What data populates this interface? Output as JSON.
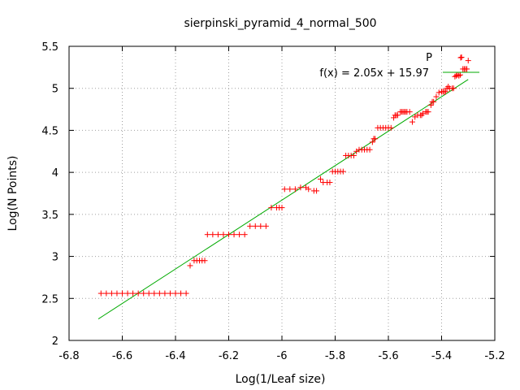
{
  "chart_data": {
    "type": "scatter",
    "title": "sierpinski_pyramid_4_normal_500",
    "xlabel": "Log(1/Leaf size)",
    "ylabel": "Log(N Points)",
    "xlim": [
      -6.8,
      -5.2
    ],
    "ylim": [
      2,
      5.5
    ],
    "x_ticks": [
      "-6.8",
      "-6.6",
      "-6.4",
      "-6.2",
      "-6",
      "-5.8",
      "-5.6",
      "-5.4",
      "-5.2"
    ],
    "y_ticks": [
      "2",
      "2.5",
      "3",
      "3.5",
      "4",
      "4.5",
      "5",
      "5.5"
    ],
    "grid": true,
    "legend_position": "top-right",
    "colors": {
      "points": "#ff0000",
      "fit": "#00aa00"
    },
    "series": [
      {
        "name": "P",
        "marker": "plus",
        "points": [
          [
            -6.68,
            2.56
          ],
          [
            -6.66,
            2.56
          ],
          [
            -6.64,
            2.56
          ],
          [
            -6.62,
            2.56
          ],
          [
            -6.6,
            2.56
          ],
          [
            -6.58,
            2.56
          ],
          [
            -6.56,
            2.56
          ],
          [
            -6.54,
            2.56
          ],
          [
            -6.52,
            2.56
          ],
          [
            -6.5,
            2.56
          ],
          [
            -6.48,
            2.56
          ],
          [
            -6.46,
            2.56
          ],
          [
            -6.44,
            2.56
          ],
          [
            -6.42,
            2.56
          ],
          [
            -6.4,
            2.56
          ],
          [
            -6.38,
            2.56
          ],
          [
            -6.36,
            2.56
          ],
          [
            -6.345,
            2.89
          ],
          [
            -6.33,
            2.95
          ],
          [
            -6.32,
            2.95
          ],
          [
            -6.31,
            2.95
          ],
          [
            -6.3,
            2.95
          ],
          [
            -6.29,
            2.95
          ],
          [
            -6.28,
            3.26
          ],
          [
            -6.26,
            3.26
          ],
          [
            -6.24,
            3.26
          ],
          [
            -6.22,
            3.26
          ],
          [
            -6.2,
            3.26
          ],
          [
            -6.18,
            3.26
          ],
          [
            -6.16,
            3.26
          ],
          [
            -6.14,
            3.26
          ],
          [
            -6.12,
            3.36
          ],
          [
            -6.1,
            3.36
          ],
          [
            -6.08,
            3.36
          ],
          [
            -6.06,
            3.36
          ],
          [
            -6.04,
            3.58
          ],
          [
            -6.02,
            3.58
          ],
          [
            -6.01,
            3.58
          ],
          [
            -6.0,
            3.58
          ],
          [
            -5.99,
            3.8
          ],
          [
            -5.97,
            3.8
          ],
          [
            -5.95,
            3.8
          ],
          [
            -5.93,
            3.82
          ],
          [
            -5.91,
            3.82
          ],
          [
            -5.9,
            3.8
          ],
          [
            -5.88,
            3.78
          ],
          [
            -5.87,
            3.78
          ],
          [
            -5.855,
            3.92
          ],
          [
            -5.845,
            3.88
          ],
          [
            -5.83,
            3.88
          ],
          [
            -5.82,
            3.88
          ],
          [
            -5.81,
            4.01
          ],
          [
            -5.8,
            4.01
          ],
          [
            -5.79,
            4.01
          ],
          [
            -5.78,
            4.01
          ],
          [
            -5.77,
            4.01
          ],
          [
            -5.76,
            4.2
          ],
          [
            -5.75,
            4.2
          ],
          [
            -5.74,
            4.2
          ],
          [
            -5.73,
            4.2
          ],
          [
            -5.72,
            4.25
          ],
          [
            -5.71,
            4.27
          ],
          [
            -5.7,
            4.27
          ],
          [
            -5.69,
            4.27
          ],
          [
            -5.68,
            4.27
          ],
          [
            -5.67,
            4.27
          ],
          [
            -5.66,
            4.36
          ],
          [
            -5.655,
            4.4
          ],
          [
            -5.65,
            4.4
          ],
          [
            -5.64,
            4.53
          ],
          [
            -5.63,
            4.53
          ],
          [
            -5.62,
            4.53
          ],
          [
            -5.61,
            4.53
          ],
          [
            -5.6,
            4.53
          ],
          [
            -5.59,
            4.53
          ],
          [
            -5.58,
            4.65
          ],
          [
            -5.575,
            4.68
          ],
          [
            -5.57,
            4.68
          ],
          [
            -5.565,
            4.68
          ],
          [
            -5.555,
            4.72
          ],
          [
            -5.55,
            4.72
          ],
          [
            -5.545,
            4.72
          ],
          [
            -5.54,
            4.72
          ],
          [
            -5.535,
            4.72
          ],
          [
            -5.53,
            4.72
          ],
          [
            -5.52,
            4.72
          ],
          [
            -5.51,
            4.6
          ],
          [
            -5.5,
            4.66
          ],
          [
            -5.49,
            4.68
          ],
          [
            -5.48,
            4.68
          ],
          [
            -5.475,
            4.68
          ],
          [
            -5.47,
            4.7
          ],
          [
            -5.46,
            4.72
          ],
          [
            -5.455,
            4.72
          ],
          [
            -5.45,
            4.72
          ],
          [
            -5.44,
            4.8
          ],
          [
            -5.435,
            4.84
          ],
          [
            -5.43,
            4.84
          ],
          [
            -5.42,
            4.9
          ],
          [
            -5.41,
            4.95
          ],
          [
            -5.4,
            4.96
          ],
          [
            -5.395,
            4.96
          ],
          [
            -5.39,
            4.96
          ],
          [
            -5.385,
            4.96
          ],
          [
            -5.38,
            5.0
          ],
          [
            -5.375,
            5.02
          ],
          [
            -5.37,
            5.0
          ],
          [
            -5.36,
            5.0
          ],
          [
            -5.355,
            5.0
          ],
          [
            -5.35,
            5.14
          ],
          [
            -5.345,
            5.15
          ],
          [
            -5.34,
            5.16
          ],
          [
            -5.335,
            5.15
          ],
          [
            -5.33,
            5.16
          ],
          [
            -5.325,
            5.37
          ],
          [
            -5.32,
            5.23
          ],
          [
            -5.315,
            5.23
          ],
          [
            -5.31,
            5.23
          ],
          [
            -5.305,
            5.23
          ],
          [
            -5.3,
            5.33
          ]
        ]
      },
      {
        "name": "f(x) = 2.05x + 15.97",
        "type": "line",
        "slope": 2.05,
        "intercept": 15.97,
        "x_range": [
          -6.69,
          -5.3
        ]
      }
    ]
  }
}
